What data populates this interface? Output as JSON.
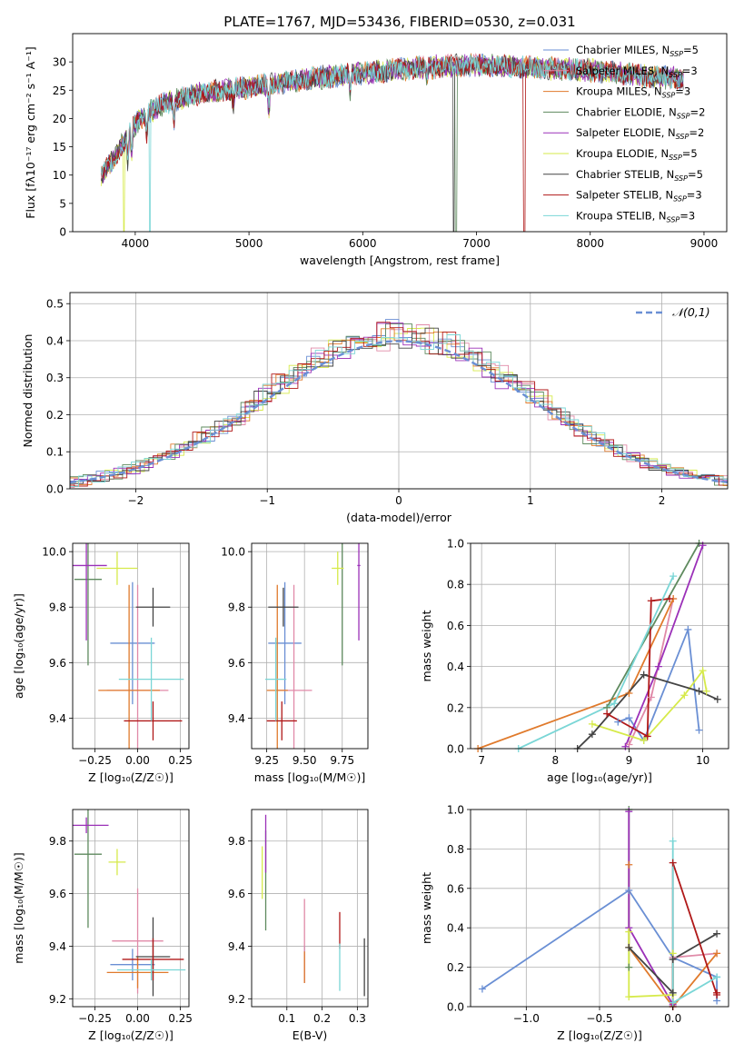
{
  "figure": {
    "title": "PLATE=1767, MJD=53436, FIBERID=0530, z=0.031"
  },
  "series_legend": [
    {
      "name": "Chabrier MILES, N_SSP=5",
      "label": "Chabrier MILES, N",
      "sub": "SSP",
      "tail": "=5",
      "color": "#6a8fd4"
    },
    {
      "name": "Salpeter MILES, N_SSP=3",
      "label": "Salpeter MILES, N",
      "sub": "SSP",
      "tail": "=3",
      "color": "#e08aa8"
    },
    {
      "name": "Kroupa MILES, N_SSP=3",
      "label": "Kroupa MILES, N",
      "sub": "SSP",
      "tail": "=3",
      "color": "#e07a2c"
    },
    {
      "name": "Chabrier ELODIE, N_SSP=2",
      "label": "Chabrier ELODIE, N",
      "sub": "SSP",
      "tail": "=2",
      "color": "#5e8a5e"
    },
    {
      "name": "Salpeter ELODIE, N_SSP=2",
      "label": "Salpeter ELODIE, N",
      "sub": "SSP",
      "tail": "=2",
      "color": "#9b30b8"
    },
    {
      "name": "Kroupa ELODIE, N_SSP=5",
      "label": "Kroupa ELODIE, N",
      "sub": "SSP",
      "tail": "=5",
      "color": "#d6ea4a"
    },
    {
      "name": "Chabrier STELIB, N_SSP=5",
      "label": "Chabrier STELIB, N",
      "sub": "SSP",
      "tail": "=5",
      "color": "#444444"
    },
    {
      "name": "Salpeter STELIB, N_SSP=3",
      "label": "Salpeter STELIB, N",
      "sub": "SSP",
      "tail": "=3",
      "color": "#b01818"
    },
    {
      "name": "Kroupa STELIB, N_SSP=3",
      "label": "Kroupa STELIB, N",
      "sub": "SSP",
      "tail": "=3",
      "color": "#7ad6d6"
    }
  ],
  "chart_data": [
    {
      "id": "spectrum",
      "type": "line",
      "xlabel": "wavelength [Angstrom, rest frame]",
      "ylabel": "Flux [fλ10⁻¹⁷ erg cm⁻² s⁻¹ A⁻¹]",
      "xlim": [
        3450,
        9200
      ],
      "ylim": [
        0,
        35
      ],
      "xticks": [
        4000,
        5000,
        6000,
        7000,
        8000,
        9000
      ],
      "yticks": [
        0,
        5,
        10,
        15,
        20,
        25,
        30
      ],
      "grid": false,
      "legend": "right",
      "continuum": [
        [
          3700,
          10
        ],
        [
          3780,
          12
        ],
        [
          3900,
          16
        ],
        [
          4000,
          19
        ],
        [
          4100,
          21
        ],
        [
          4300,
          23
        ],
        [
          4600,
          24.5
        ],
        [
          5000,
          25.5
        ],
        [
          5500,
          27
        ],
        [
          6000,
          28
        ],
        [
          6500,
          29
        ],
        [
          7000,
          29.5
        ],
        [
          7500,
          29
        ],
        [
          8000,
          28.5
        ],
        [
          8500,
          27.5
        ],
        [
          8800,
          27
        ]
      ],
      "drops": [
        {
          "series": 5,
          "x": 3900,
          "to": 0
        },
        {
          "series": 8,
          "x": 4130,
          "to": 0
        },
        {
          "series": 3,
          "x": 6820,
          "to": 0
        },
        {
          "series": 7,
          "x": 7420,
          "to": 0
        },
        {
          "series": 6,
          "x": 6800,
          "to": 0
        }
      ]
    },
    {
      "id": "residuals",
      "type": "histogram",
      "xlabel": "(data-model)/error",
      "ylabel": "Normed distribution",
      "xlim": [
        -2.5,
        2.5
      ],
      "ylim": [
        0,
        0.53
      ],
      "xticks": [
        -2,
        -1,
        0,
        1,
        2
      ],
      "yticks": [
        0,
        0.1,
        0.2,
        0.3,
        0.4,
        0.5
      ],
      "grid": true,
      "legend": "top-right",
      "reference_label": "𝒩(0,1)",
      "reference_color": "#6a8fd4",
      "bin_width": 0.1
    },
    {
      "id": "age_vs_Z",
      "type": "errorbar",
      "xlabel": "Z [log₁₀(Z/Z☉)]",
      "ylabel": "age  [log₁₀(age/yr)]",
      "xlim": [
        -0.38,
        0.3
      ],
      "ylim": [
        9.29,
        10.03
      ],
      "xticks": [
        -0.25,
        0.0,
        0.25
      ],
      "xticklabels": [
        "−0.25",
        "0.00",
        "0.25"
      ],
      "yticks": [
        9.4,
        9.6,
        9.8,
        10.0
      ],
      "grid": true,
      "points": [
        {
          "s": 0,
          "x": -0.03,
          "y": 9.67,
          "xerr": 0.13,
          "yerr": 0.22
        },
        {
          "s": 1,
          "x": 0.0,
          "y": 9.5,
          "xerr": 0.18,
          "yerr": 0.38
        },
        {
          "s": 2,
          "x": -0.05,
          "y": 9.5,
          "xerr": 0.18,
          "yerr": 0.38
        },
        {
          "s": 3,
          "x": -0.29,
          "y": 9.9,
          "xerr": 0.08,
          "yerr": 0.31
        },
        {
          "s": 4,
          "x": -0.3,
          "y": 9.95,
          "xerr": 0.12,
          "yerr": 0.27
        },
        {
          "s": 5,
          "x": -0.12,
          "y": 9.94,
          "xerr": 0.12,
          "yerr": 0.06
        },
        {
          "s": 6,
          "x": 0.09,
          "y": 9.8,
          "xerr": 0.1,
          "yerr": 0.07
        },
        {
          "s": 7,
          "x": 0.09,
          "y": 9.39,
          "xerr": 0.17,
          "yerr": 0.07
        },
        {
          "s": 8,
          "x": 0.08,
          "y": 9.54,
          "xerr": 0.19,
          "yerr": 0.15
        }
      ]
    },
    {
      "id": "age_vs_mass",
      "type": "errorbar",
      "xlabel": "mass [log₁₀(M/M☉)]",
      "ylabel": "",
      "xlim": [
        9.15,
        9.92
      ],
      "ylim": [
        9.29,
        10.03
      ],
      "xticks": [
        9.25,
        9.5,
        9.75
      ],
      "xticklabels": [
        "9.25",
        "9.50",
        "9.75"
      ],
      "yticks": [
        9.4,
        9.6,
        9.8,
        10.0
      ],
      "grid": true,
      "points": [
        {
          "s": 0,
          "x": 9.37,
          "y": 9.67,
          "xerr": 0.11,
          "yerr": 0.22
        },
        {
          "s": 1,
          "x": 9.43,
          "y": 9.5,
          "xerr": 0.12,
          "yerr": 0.38
        },
        {
          "s": 2,
          "x": 9.32,
          "y": 9.5,
          "xerr": 0.07,
          "yerr": 0.38
        },
        {
          "s": 3,
          "x": 9.75,
          "y": 9.9,
          "xerr": 0.0,
          "yerr": 0.31
        },
        {
          "s": 4,
          "x": 9.86,
          "y": 9.95,
          "xerr": 0.01,
          "yerr": 0.27
        },
        {
          "s": 5,
          "x": 9.72,
          "y": 9.94,
          "xerr": 0.04,
          "yerr": 0.06
        },
        {
          "s": 6,
          "x": 9.36,
          "y": 9.8,
          "xerr": 0.1,
          "yerr": 0.07
        },
        {
          "s": 7,
          "x": 9.35,
          "y": 9.39,
          "xerr": 0.1,
          "yerr": 0.07
        },
        {
          "s": 8,
          "x": 9.31,
          "y": 9.54,
          "xerr": 0.07,
          "yerr": 0.15
        }
      ]
    },
    {
      "id": "weight_vs_age",
      "type": "line",
      "xlabel": "age  [log₁₀(age/yr)]",
      "ylabel": "mass weight",
      "xlim": [
        6.85,
        10.35
      ],
      "ylim": [
        0,
        1
      ],
      "xticks": [
        7,
        8,
        9,
        10
      ],
      "yticks": [
        0,
        0.2,
        0.4,
        0.6,
        0.8,
        1.0
      ],
      "grid": true,
      "series": [
        {
          "s": 0,
          "x": [
            8.85,
            9.0,
            9.2,
            9.8,
            9.95
          ],
          "y": [
            0.13,
            0.15,
            0.04,
            0.58,
            0.09
          ]
        },
        {
          "s": 1,
          "x": [
            9.0,
            9.3,
            9.6
          ],
          "y": [
            0.02,
            0.25,
            0.73
          ]
        },
        {
          "s": 2,
          "x": [
            6.95,
            9.0,
            9.6
          ],
          "y": [
            0.0,
            0.27,
            0.73
          ]
        },
        {
          "s": 3,
          "x": [
            8.7,
            9.95
          ],
          "y": [
            0.2,
            1.0
          ]
        },
        {
          "s": 4,
          "x": [
            8.95,
            9.4,
            10.0
          ],
          "y": [
            0.01,
            0.4,
            0.99
          ]
        },
        {
          "s": 5,
          "x": [
            8.5,
            9.2,
            9.75,
            10.0,
            10.05
          ],
          "y": [
            0.12,
            0.04,
            0.26,
            0.38,
            0.28
          ]
        },
        {
          "s": 6,
          "x": [
            8.3,
            8.5,
            9.2,
            9.95,
            10.2
          ],
          "y": [
            0.0,
            0.07,
            0.36,
            0.28,
            0.24
          ]
        },
        {
          "s": 7,
          "x": [
            8.7,
            9.25,
            9.3,
            9.55
          ],
          "y": [
            0.17,
            0.06,
            0.72,
            0.73
          ]
        },
        {
          "s": 8,
          "x": [
            7.5,
            8.8,
            9.6
          ],
          "y": [
            0.0,
            0.22,
            0.84
          ]
        }
      ]
    },
    {
      "id": "mass_vs_Z",
      "type": "errorbar",
      "xlabel": "Z [log₁₀(Z/Z☉)]",
      "ylabel": "mass [log₁₀(M/M☉)]",
      "xlim": [
        -0.38,
        0.3
      ],
      "ylim": [
        9.17,
        9.92
      ],
      "xticks": [
        -0.25,
        0.0,
        0.25
      ],
      "xticklabels": [
        "−0.25",
        "0.00",
        "0.25"
      ],
      "yticks": [
        9.2,
        9.4,
        9.6,
        9.8
      ],
      "grid": true,
      "points": [
        {
          "s": 0,
          "x": -0.03,
          "y": 9.33,
          "xerr": 0.13,
          "yerr": 0.06
        },
        {
          "s": 1,
          "x": 0.0,
          "y": 9.42,
          "xerr": 0.15,
          "yerr": 0.2
        },
        {
          "s": 2,
          "x": 0.0,
          "y": 9.3,
          "xerr": 0.18,
          "yerr": 0.06
        },
        {
          "s": 3,
          "x": -0.29,
          "y": 9.75,
          "xerr": 0.08,
          "yerr": 0.28
        },
        {
          "s": 4,
          "x": -0.3,
          "y": 9.86,
          "xerr": 0.13,
          "yerr": 0.03
        },
        {
          "s": 5,
          "x": -0.12,
          "y": 9.72,
          "xerr": 0.05,
          "yerr": 0.05
        },
        {
          "s": 6,
          "x": 0.09,
          "y": 9.36,
          "xerr": 0.1,
          "yerr": 0.15
        },
        {
          "s": 7,
          "x": 0.09,
          "y": 9.35,
          "xerr": 0.18,
          "yerr": 0.08
        },
        {
          "s": 8,
          "x": 0.08,
          "y": 9.31,
          "xerr": 0.2,
          "yerr": 0.04
        }
      ]
    },
    {
      "id": "mass_vs_ebv",
      "type": "errorbar",
      "xlabel": "E(B-V)",
      "ylabel": "",
      "xlim": [
        0.0,
        0.33
      ],
      "ylim": [
        9.17,
        9.92
      ],
      "xticks": [
        0.1,
        0.2,
        0.3
      ],
      "xticklabels": [
        "0.1",
        "0.2",
        "0.3"
      ],
      "yticks": [
        9.2,
        9.4,
        9.6,
        9.8
      ],
      "grid": true,
      "points": [
        {
          "s": 0,
          "x": 0.15,
          "y": 9.33,
          "xerr": 0,
          "yerr": 0.07
        },
        {
          "s": 1,
          "x": 0.15,
          "y": 9.42,
          "xerr": 0,
          "yerr": 0.16
        },
        {
          "s": 2,
          "x": 0.15,
          "y": 9.32,
          "xerr": 0,
          "yerr": 0.06
        },
        {
          "s": 3,
          "x": 0.04,
          "y": 9.65,
          "xerr": 0,
          "yerr": 0.19
        },
        {
          "s": 4,
          "x": 0.04,
          "y": 9.79,
          "xerr": 0,
          "yerr": 0.11
        },
        {
          "s": 5,
          "x": 0.03,
          "y": 9.68,
          "xerr": 0,
          "yerr": 0.1
        },
        {
          "s": 6,
          "x": 0.32,
          "y": 9.32,
          "xerr": 0,
          "yerr": 0.11
        },
        {
          "s": 7,
          "x": 0.25,
          "y": 9.46,
          "xerr": 0,
          "yerr": 0.07
        },
        {
          "s": 8,
          "x": 0.25,
          "y": 9.32,
          "xerr": 0,
          "yerr": 0.09
        }
      ]
    },
    {
      "id": "weight_vs_Z",
      "type": "line",
      "xlabel": "Z [log₁₀(Z/Z☉)]",
      "ylabel": "mass weight",
      "xlim": [
        -1.38,
        0.38
      ],
      "ylim": [
        0,
        1
      ],
      "xticks": [
        -1.0,
        -0.5,
        0.0
      ],
      "xticklabels": [
        "−1.0",
        "−0.5",
        "0.0"
      ],
      "yticks": [
        0,
        0.2,
        0.4,
        0.6,
        0.8,
        1.0
      ],
      "grid": true,
      "series": [
        {
          "s": 0,
          "x": [
            -1.3,
            -0.3,
            0.0,
            0.3,
            0.3
          ],
          "y": [
            0.09,
            0.59,
            0.25,
            0.15,
            0.03
          ]
        },
        {
          "s": 1,
          "x": [
            0.0,
            0.0,
            0.3
          ],
          "y": [
            0.02,
            0.25,
            0.27
          ]
        },
        {
          "s": 2,
          "x": [
            -0.3,
            -0.3,
            0.0,
            0.3
          ],
          "y": [
            0.72,
            0.3,
            0.0,
            0.27
          ]
        },
        {
          "s": 3,
          "x": [
            -0.3,
            -0.3
          ],
          "y": [
            0.2,
            1.0
          ]
        },
        {
          "s": 4,
          "x": [
            -0.3,
            -0.3,
            0.0
          ],
          "y": [
            0.99,
            0.4,
            0.01
          ]
        },
        {
          "s": 5,
          "x": [
            -0.3,
            -0.3,
            0.0,
            0.0
          ],
          "y": [
            0.38,
            0.05,
            0.06,
            0.27
          ]
        },
        {
          "s": 6,
          "x": [
            -0.3,
            0.0,
            0.0,
            0.3
          ],
          "y": [
            0.3,
            0.07,
            0.24,
            0.37
          ]
        },
        {
          "s": 7,
          "x": [
            0.0,
            0.0,
            0.3,
            0.3
          ],
          "y": [
            0.0,
            0.73,
            0.06,
            0.07
          ]
        },
        {
          "s": 8,
          "x": [
            0.0,
            0.0,
            0.3
          ],
          "y": [
            0.84,
            0.02,
            0.15
          ]
        }
      ]
    }
  ]
}
